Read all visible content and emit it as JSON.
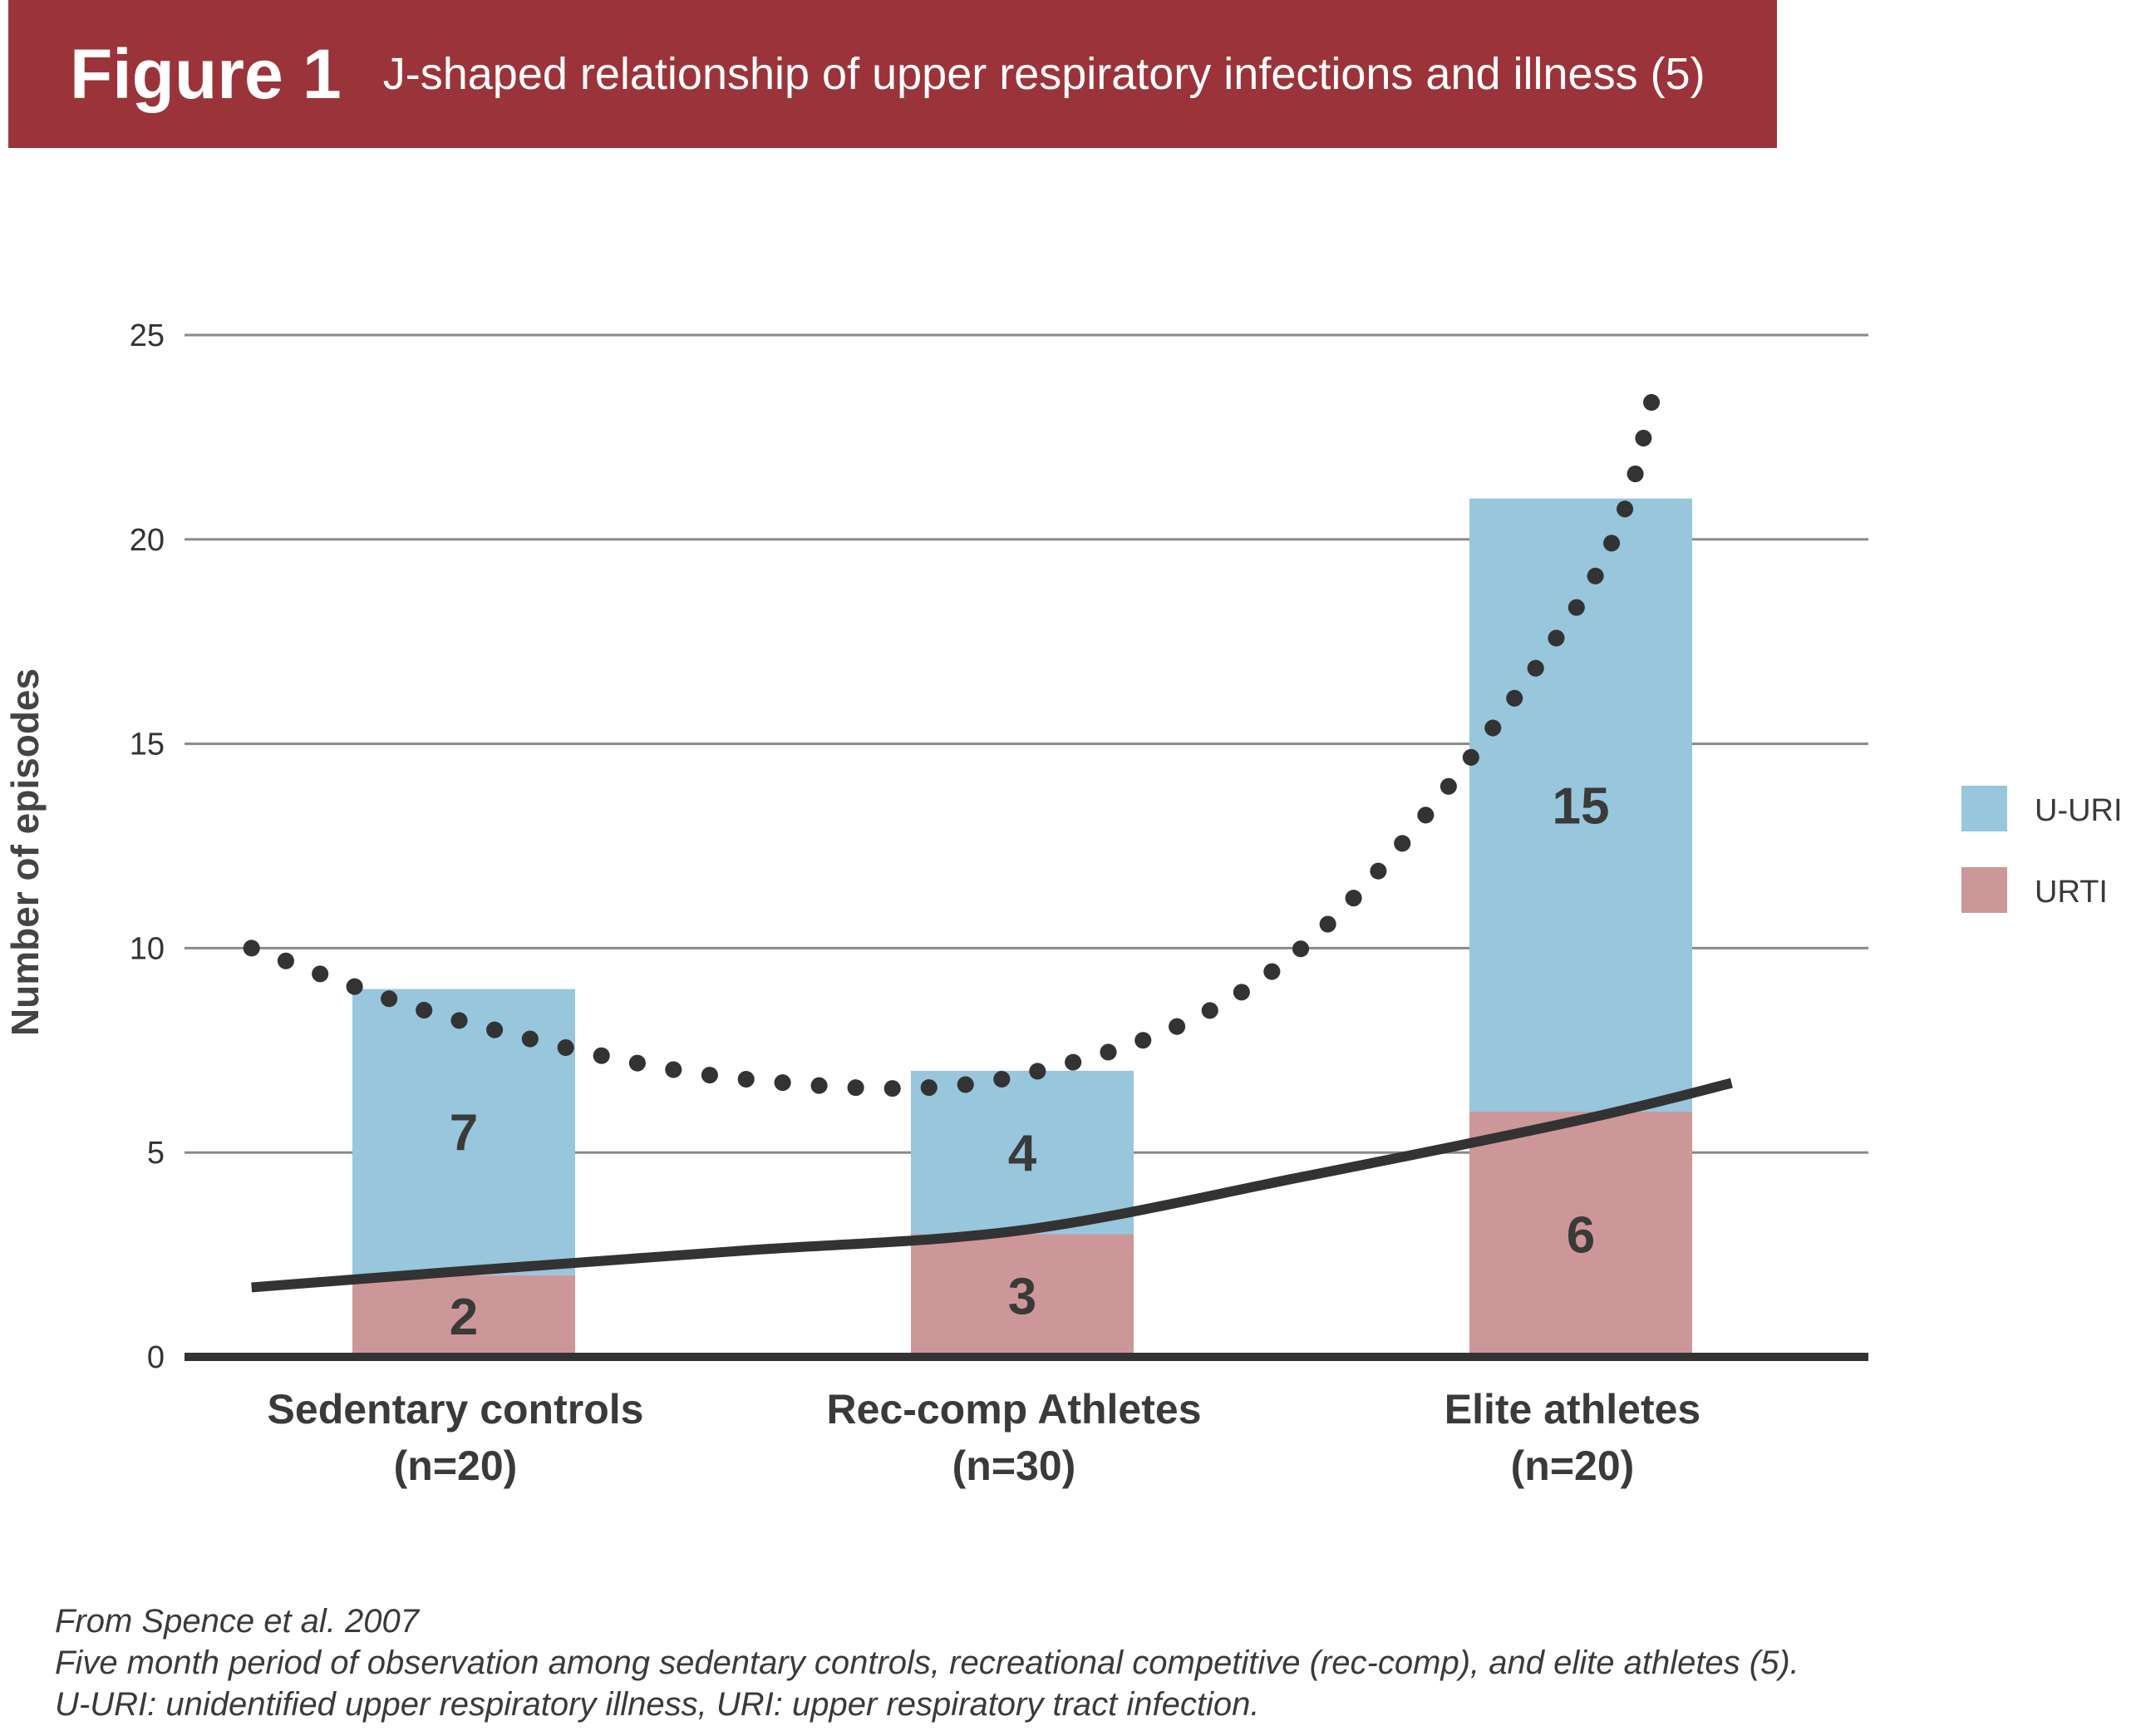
{
  "figure": {
    "label": "Figure 1",
    "title": "J-shaped relationship of upper respiratory infections and illness (5)"
  },
  "colors": {
    "banner": "#9b343a",
    "uuri": "#98c6dc",
    "urti": "#cd979a",
    "curve": "#333333"
  },
  "chart_data": {
    "type": "bar",
    "stacked": true,
    "categories": [
      [
        "Sedentary controls",
        "(n=20)"
      ],
      [
        "Rec-comp Athletes",
        "(n=30)"
      ],
      [
        "Elite athletes",
        "(n=20)"
      ]
    ],
    "series": [
      {
        "name": "URTI",
        "values": [
          2,
          3,
          6
        ],
        "labels": [
          "2",
          "3",
          "6"
        ]
      },
      {
        "name": "U-URI",
        "values": [
          7,
          4,
          15
        ],
        "labels": [
          "7",
          "4",
          "15"
        ]
      }
    ],
    "legend": {
      "position": "right",
      "entries": [
        "U-URI",
        "URTI"
      ]
    },
    "ylabel": "Number of episodes",
    "xlabel": "",
    "ylim": [
      0,
      25
    ],
    "yticks": [
      "0",
      "5",
      "10",
      "15",
      "20",
      "25"
    ],
    "grid": true,
    "trend_lines": [
      {
        "style": "dotted",
        "x": [
          -0.38,
          0.0,
          0.5,
          1.0,
          1.5,
          2.0,
          2.13
        ],
        "y": [
          10,
          8.2,
          6.8,
          6.9,
          10,
          18.5,
          23.5
        ]
      },
      {
        "style": "solid",
        "x": [
          -0.38,
          0.0,
          0.5,
          1.0,
          1.5,
          2.0,
          2.27
        ],
        "y": [
          1.7,
          2.1,
          2.6,
          3.1,
          4.4,
          5.8,
          6.7
        ]
      }
    ]
  },
  "footnote": {
    "lines": [
      "From Spence et al. 2007",
      "Five month period of observation among sedentary controls, recreational competitive (rec-comp), and elite athletes (5).",
      "U-URI: unidentified upper respiratory illness, URI: upper respiratory tract infection."
    ]
  }
}
